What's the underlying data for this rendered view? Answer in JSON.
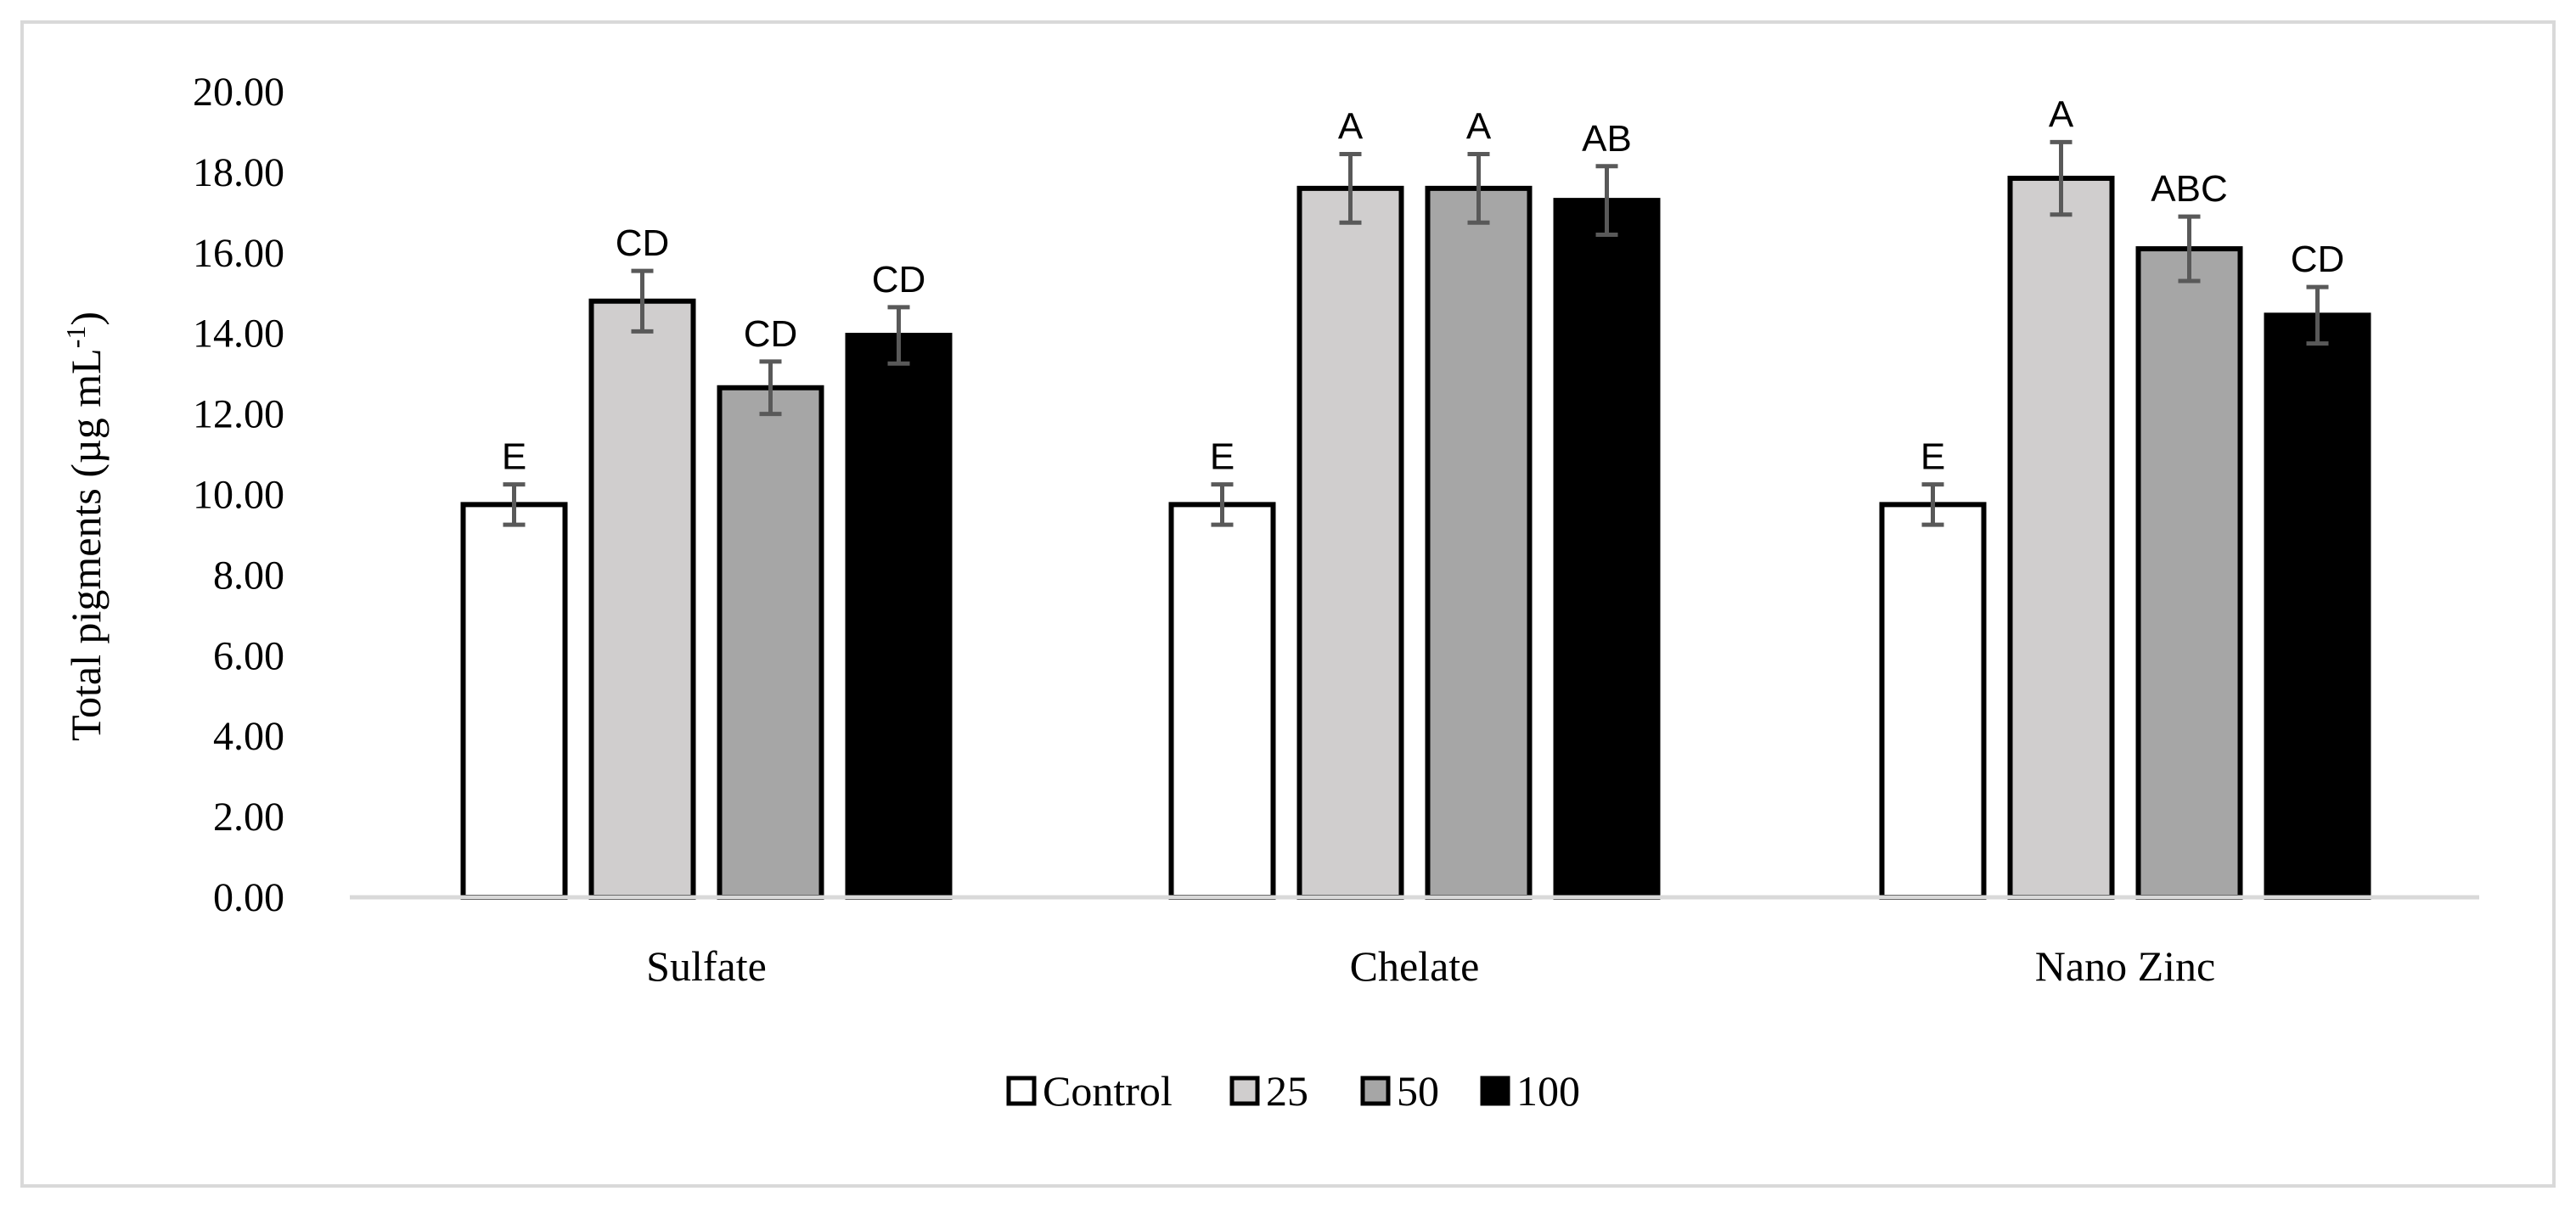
{
  "chart_data": {
    "type": "bar",
    "title": "",
    "xlabel": "",
    "ylabel": "Total pigments (µg mL",
    "ylabel_superscript": "-1",
    "ylabel_close": ")",
    "ylim": [
      0,
      20
    ],
    "yticks": [
      0,
      2,
      4,
      6,
      8,
      10,
      12,
      14,
      16,
      18,
      20
    ],
    "ytick_labels": [
      "0.00",
      "2.00",
      "4.00",
      "6.00",
      "8.00",
      "10.00",
      "12.00",
      "14.00",
      "16.00",
      "18.00",
      "20.00"
    ],
    "categories": [
      "Sulfate",
      "Chelate",
      "Nano Zinc"
    ],
    "legend_position": "bottom",
    "series": [
      {
        "name": "Control",
        "color": "#ffffff",
        "values": [
          9.75,
          9.75,
          9.75
        ],
        "errors": [
          0.5,
          0.5,
          0.5
        ],
        "letters": [
          "E",
          "E",
          "E"
        ]
      },
      {
        "name": "25",
        "color": "#d0cece",
        "values": [
          14.8,
          17.6,
          17.85
        ],
        "errors": [
          0.75,
          0.85,
          0.9
        ],
        "letters": [
          "CD",
          "A",
          "A"
        ]
      },
      {
        "name": "50",
        "color": "#a6a6a6",
        "values": [
          12.65,
          17.6,
          16.1
        ],
        "errors": [
          0.65,
          0.85,
          0.8
        ],
        "letters": [
          "CD",
          "A",
          "ABC"
        ]
      },
      {
        "name": "100",
        "color": "#000000",
        "values": [
          13.95,
          17.3,
          14.45
        ],
        "errors": [
          0.7,
          0.85,
          0.7
        ],
        "letters": [
          "CD",
          "AB",
          "CD"
        ]
      }
    ],
    "colors": {
      "bar_stroke": "#000000",
      "error_bar": "#595959",
      "axis_line": "#d9d9d9",
      "frame": "#d9d9d9"
    }
  }
}
